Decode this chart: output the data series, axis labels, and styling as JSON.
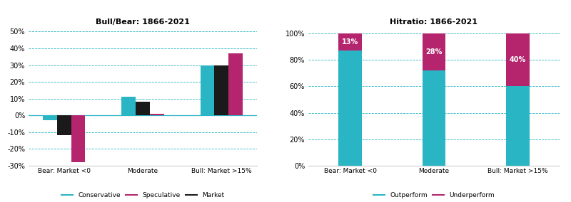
{
  "left_title": "Bull/Bear: 1866-2021",
  "right_title": "Hitratio: 1866-2021",
  "categories": [
    "Bear: Market <0",
    "Moderate",
    "Bull: Market >15%"
  ],
  "conservative": [
    -3,
    11,
    30
  ],
  "speculative": [
    -28,
    1,
    37
  ],
  "market": [
    -12,
    8,
    30
  ],
  "outperform": [
    87,
    72,
    60
  ],
  "underperform": [
    13,
    28,
    40
  ],
  "ylim_left": [
    -30,
    50
  ],
  "yticks_left": [
    -30,
    -20,
    -10,
    0,
    10,
    20,
    30,
    40,
    50
  ],
  "yticks_right": [
    0,
    20,
    40,
    60,
    80,
    100
  ],
  "color_conservative": "#29b5c3",
  "color_speculative": "#b5256e",
  "color_market": "#1a1a1a",
  "color_outperform": "#29b5c3",
  "color_underperform": "#b5256e",
  "color_grid": "#29b5c3",
  "left_legend": [
    {
      "label": "Conservative",
      "color": "#29b5c3"
    },
    {
      "label": "Speculative",
      "color": "#b5256e"
    },
    {
      "label": "Market",
      "color": "#1a1a1a"
    }
  ],
  "right_legend": [
    {
      "label": "Outperform",
      "color": "#29b5c3"
    },
    {
      "label": "Underperform",
      "color": "#b5256e"
    }
  ],
  "bar_width": 0.18,
  "background_color": "#ffffff"
}
